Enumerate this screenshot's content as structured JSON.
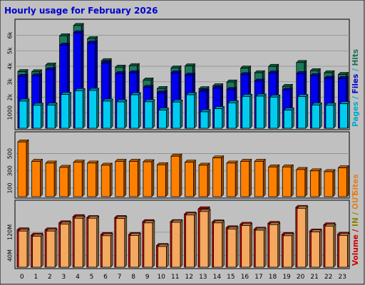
{
  "chart_data": {
    "type": "bar",
    "title": "Hourly usage for February 2026",
    "categories": [
      "0",
      "1",
      "2",
      "3",
      "4",
      "5",
      "6",
      "7",
      "8",
      "9",
      "10",
      "11",
      "12",
      "13",
      "14",
      "15",
      "16",
      "17",
      "18",
      "19",
      "20",
      "21",
      "22",
      "23"
    ],
    "hits": [
      3650,
      3640,
      4080,
      5960,
      6630,
      5780,
      4360,
      3940,
      4040,
      3110,
      2560,
      3890,
      4020,
      2550,
      2740,
      2980,
      3880,
      3580,
      3990,
      2700,
      4240,
      3710,
      3580,
      3470
    ],
    "files": [
      3340,
      3380,
      3780,
      5360,
      6150,
      5500,
      4200,
      3520,
      3580,
      2630,
      2280,
      3570,
      3420,
      2380,
      2580,
      2490,
      3460,
      3040,
      3560,
      2460,
      3520,
      3390,
      3220,
      3200
    ],
    "pages": [
      1750,
      1480,
      1490,
      2180,
      2420,
      2440,
      1750,
      1700,
      2160,
      1710,
      1170,
      1690,
      2160,
      1060,
      1260,
      1640,
      2050,
      2070,
      2010,
      1170,
      2040,
      1500,
      1480,
      1580
    ],
    "sites": [
      635,
      410,
      390,
      340,
      400,
      390,
      365,
      410,
      410,
      405,
      370,
      470,
      400,
      365,
      450,
      390,
      410,
      410,
      345,
      345,
      315,
      300,
      290,
      335
    ],
    "volume_mb": [
      128,
      110,
      128,
      152,
      173,
      170,
      112,
      170,
      112,
      156,
      74,
      156,
      182,
      200,
      155,
      135,
      147,
      130,
      150,
      112,
      205,
      124,
      145,
      113
    ],
    "kbytes_mb": [
      124,
      106,
      124,
      148,
      168,
      168,
      108,
      167,
      109,
      152,
      71,
      154,
      179,
      191,
      152,
      131,
      143,
      127,
      146,
      108,
      202,
      121,
      141,
      109
    ],
    "panels": [
      {
        "ylabel_parts": [
          {
            "text": "Pages",
            "color": "#00aacc"
          },
          {
            "text": " / ",
            "color": "#00aacc"
          },
          {
            "text": "Files",
            "color": "#0000cc"
          },
          {
            "text": " / ",
            "color": "#00aacc"
          },
          {
            "text": "Hits",
            "color": "#1a6f50"
          }
        ],
        "ymax": 6850,
        "ticks": [
          1000,
          2000,
          3000,
          4000,
          5000,
          6000
        ],
        "tick_labels": [
          "1000",
          "2k",
          "3k",
          "4k",
          "5k",
          "6k"
        ]
      },
      {
        "ylabel_parts": [
          {
            "text": "Sites",
            "color": "#e08020"
          }
        ],
        "ymax": 720,
        "ticks": [
          100,
          300,
          500
        ],
        "tick_labels": [
          "100",
          "300",
          "500"
        ]
      },
      {
        "ylabel_parts": [
          {
            "text": "Volume",
            "color": "#cc0000"
          },
          {
            "text": " / ",
            "color": "#cc0000"
          },
          {
            "text": "IN",
            "color": "#888800"
          },
          {
            "text": " / ",
            "color": "#888800"
          },
          {
            "text": "OUT",
            "color": "#e08020"
          }
        ],
        "ymax": 220,
        "ticks": [
          40,
          120
        ],
        "tick_labels": [
          "40M",
          "120M"
        ]
      }
    ],
    "colors": {
      "hits": "#1a7a5a",
      "files": "#0000ee",
      "pages": "#00ccee",
      "sites": "#ff8000",
      "volume": "#ee0000",
      "kbytes": "#f4a860",
      "plot_bg": "#c0c0c0",
      "title": "#0000cc",
      "page_bg": "#c0c0c0"
    },
    "grid": true
  }
}
